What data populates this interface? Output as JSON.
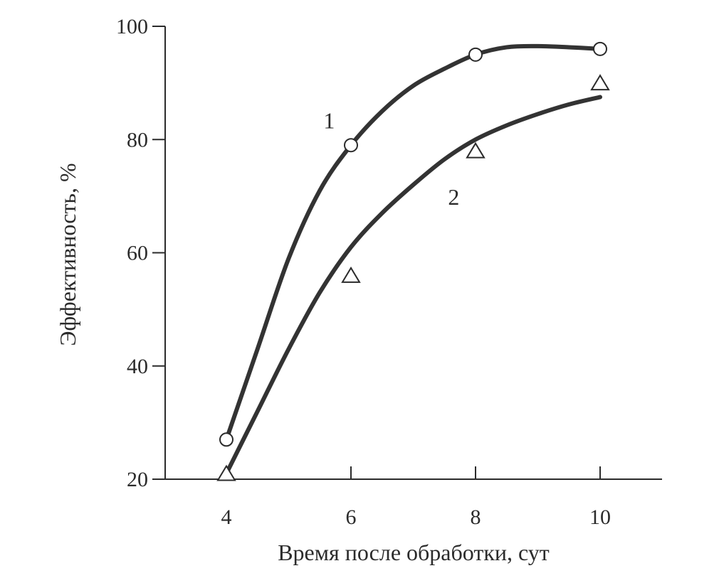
{
  "chart_data": {
    "type": "line",
    "xlabel": "Время после обработки, сут",
    "ylabel": "Эффективность, %",
    "xlim": [
      3,
      11.2
    ],
    "ylim": [
      20,
      100
    ],
    "x_ticks": [
      4,
      6,
      8,
      10
    ],
    "y_ticks": [
      20,
      40,
      60,
      80,
      100
    ],
    "grid": false,
    "series": [
      {
        "name": "1",
        "marker": "circle",
        "points": {
          "x": [
            4,
            6,
            8,
            10
          ],
          "y": [
            27,
            79,
            95,
            96
          ]
        },
        "curve": {
          "x": [
            4,
            4.5,
            5,
            5.5,
            6,
            6.5,
            7,
            7.5,
            8,
            8.5,
            9,
            9.5,
            10
          ],
          "y": [
            27,
            43,
            59,
            71,
            79,
            85,
            89.5,
            92.5,
            95,
            96.3,
            96.5,
            96.3,
            96
          ]
        }
      },
      {
        "name": "2",
        "marker": "triangle",
        "points": {
          "x": [
            4,
            6,
            8,
            10
          ],
          "y": [
            21,
            56,
            78,
            90
          ]
        },
        "curve": {
          "x": [
            4,
            4.5,
            5,
            5.5,
            6,
            6.5,
            7,
            7.5,
            8,
            8.5,
            9,
            9.5,
            10
          ],
          "y": [
            21,
            32,
            43,
            53,
            61,
            67,
            72,
            76.5,
            80,
            82.5,
            84.5,
            86.2,
            87.5
          ]
        }
      }
    ],
    "curve_labels": [
      {
        "text": "1",
        "x": 5.65,
        "y": 82
      },
      {
        "text": "2",
        "x": 7.65,
        "y": 68.5
      }
    ]
  }
}
